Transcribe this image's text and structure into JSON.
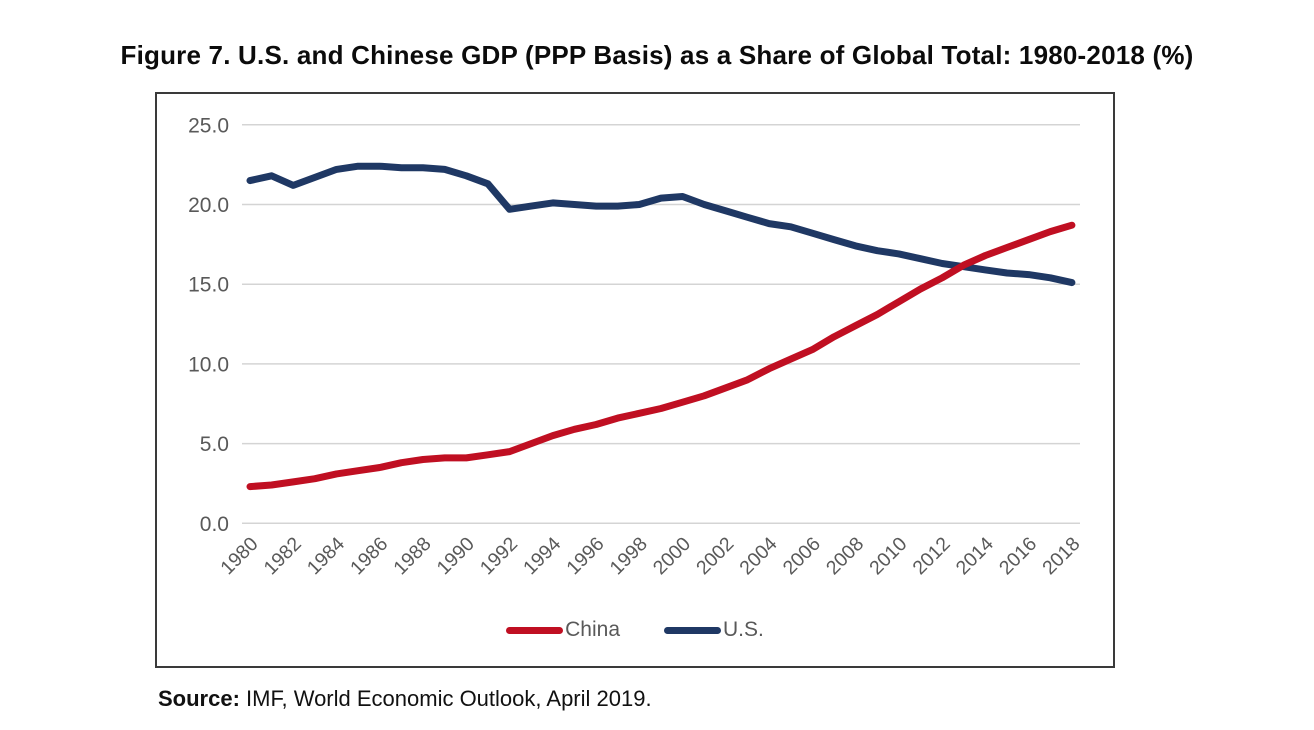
{
  "title": "Figure 7. U.S. and Chinese GDP (PPP Basis) as a Share of Global Total: 1980-2018 (%)",
  "source": {
    "label": "Source:",
    "text": " IMF, World Economic Outlook, April 2019."
  },
  "chart_data": {
    "type": "line",
    "title": "Figure 7. U.S. and Chinese GDP (PPP Basis) as a Share of Global Total: 1980-2018 (%)",
    "xlabel": "",
    "ylabel": "",
    "x": [
      1980,
      1981,
      1982,
      1983,
      1984,
      1985,
      1986,
      1987,
      1988,
      1989,
      1990,
      1991,
      1992,
      1993,
      1994,
      1995,
      1996,
      1997,
      1998,
      1999,
      2000,
      2001,
      2002,
      2003,
      2004,
      2005,
      2006,
      2007,
      2008,
      2009,
      2010,
      2011,
      2012,
      2013,
      2014,
      2015,
      2016,
      2017,
      2018
    ],
    "x_tick_labels": [
      "1980",
      "1982",
      "1984",
      "1986",
      "1988",
      "1990",
      "1992",
      "1994",
      "1996",
      "1998",
      "2000",
      "2002",
      "2004",
      "2006",
      "2008",
      "2010",
      "2012",
      "2014",
      "2016",
      "2018"
    ],
    "series": [
      {
        "name": "China",
        "color": "#c00f22",
        "values": [
          2.3,
          2.4,
          2.6,
          2.8,
          3.1,
          3.3,
          3.5,
          3.8,
          4.0,
          4.1,
          4.1,
          4.3,
          4.5,
          5.0,
          5.5,
          5.9,
          6.2,
          6.6,
          6.9,
          7.2,
          7.6,
          8.0,
          8.5,
          9.0,
          9.7,
          10.3,
          10.9,
          11.7,
          12.4,
          13.1,
          13.9,
          14.7,
          15.4,
          16.2,
          16.8,
          17.3,
          17.8,
          18.3,
          18.7
        ]
      },
      {
        "name": "U.S.",
        "color": "#1f3864",
        "values": [
          21.5,
          21.8,
          21.2,
          21.7,
          22.2,
          22.4,
          22.4,
          22.3,
          22.3,
          22.2,
          21.8,
          21.3,
          19.7,
          19.9,
          20.1,
          20.0,
          19.9,
          19.9,
          20.0,
          20.4,
          20.5,
          20.0,
          19.6,
          19.2,
          18.8,
          18.6,
          18.2,
          17.8,
          17.4,
          17.1,
          16.9,
          16.6,
          16.3,
          16.1,
          15.9,
          15.7,
          15.6,
          15.4,
          15.1
        ]
      }
    ],
    "ylim": [
      0,
      25
    ],
    "y_ticks": [
      0,
      5,
      10,
      15,
      20,
      25
    ],
    "y_tick_labels": [
      "0.0",
      "5.0",
      "10.0",
      "15.0",
      "20.0",
      "25.0"
    ],
    "grid": "horizontal",
    "grid_color": "#d4d4d4",
    "axis_label_color": "#595959",
    "plot_border_color": "#3a3a3a",
    "legend_position": "bottom-center",
    "x_tick_rotation_deg": 45
  }
}
